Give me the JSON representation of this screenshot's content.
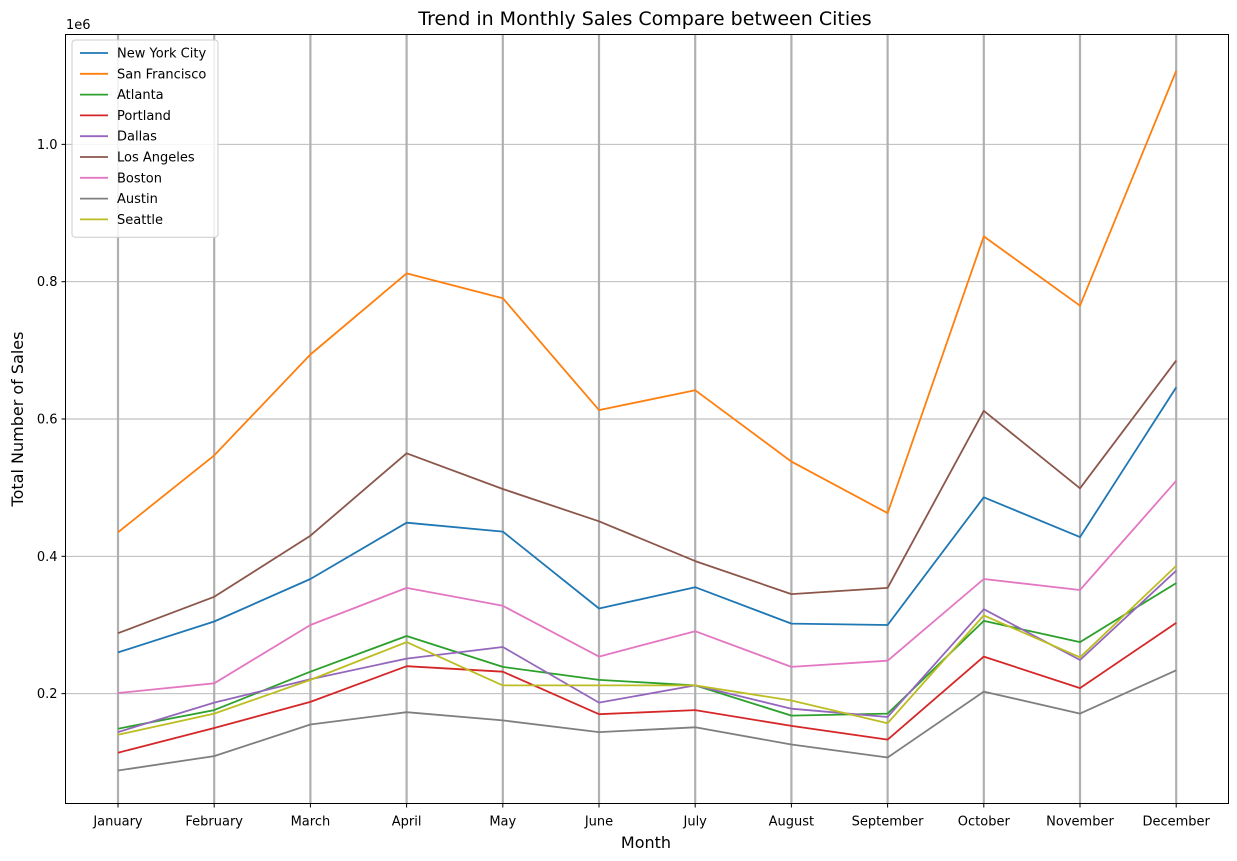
{
  "chart_data": {
    "type": "line",
    "title": "Trend in Monthly Sales Compare between Cities",
    "xlabel": "Month",
    "ylabel": "Total Number of Sales",
    "y_offset_label": "1e6",
    "ylim": [
      40000,
      1160000
    ],
    "yticks": [
      {
        "value": 200000,
        "label": "0.2"
      },
      {
        "value": 400000,
        "label": "0.4"
      },
      {
        "value": 600000,
        "label": "0.6"
      },
      {
        "value": 800000,
        "label": "0.8"
      },
      {
        "value": 1000000,
        "label": "1.0"
      }
    ],
    "grid": true,
    "legend_position": "top-left",
    "categories": [
      "January",
      "February",
      "March",
      "April",
      "May",
      "June",
      "July",
      "August",
      "September",
      "October",
      "November",
      "December"
    ],
    "series": [
      {
        "name": "New York City",
        "color": "#1f77b4",
        "values": [
          260000,
          305000,
          367000,
          449000,
          436000,
          324000,
          355000,
          302000,
          300000,
          486000,
          428000,
          646000
        ]
      },
      {
        "name": "San Francisco",
        "color": "#ff7f0e",
        "values": [
          435000,
          547000,
          694000,
          812000,
          776000,
          613000,
          642000,
          538000,
          463000,
          866000,
          765000,
          1107000
        ]
      },
      {
        "name": "Atlanta",
        "color": "#2ca02c",
        "values": [
          149000,
          176000,
          232000,
          284000,
          239000,
          220000,
          212000,
          168000,
          171000,
          306000,
          275000,
          361000
        ]
      },
      {
        "name": "Portland",
        "color": "#d62728",
        "values": [
          114000,
          150000,
          188000,
          240000,
          232000,
          170000,
          176000,
          153000,
          133000,
          254000,
          208000,
          303000
        ]
      },
      {
        "name": "Dallas",
        "color": "#9467bd",
        "values": [
          144000,
          187000,
          221000,
          251000,
          268000,
          187000,
          212000,
          178000,
          166000,
          323000,
          249000,
          379000
        ]
      },
      {
        "name": "Los Angeles",
        "color": "#8c564b",
        "values": [
          288000,
          341000,
          430000,
          550000,
          498000,
          451000,
          393000,
          345000,
          354000,
          612000,
          499000,
          685000
        ]
      },
      {
        "name": "Boston",
        "color": "#e377c2",
        "values": [
          201000,
          215000,
          300000,
          354000,
          328000,
          254000,
          291000,
          239000,
          248000,
          367000,
          351000,
          510000
        ]
      },
      {
        "name": "Austin",
        "color": "#7f7f7f",
        "values": [
          88000,
          109000,
          155000,
          173000,
          161000,
          144000,
          151000,
          126000,
          107000,
          203000,
          171000,
          234000
        ]
      },
      {
        "name": "Seattle",
        "color": "#bcbd22",
        "values": [
          140000,
          171000,
          220000,
          275000,
          212000,
          212000,
          212000,
          190000,
          157000,
          314000,
          253000,
          386000
        ]
      }
    ]
  }
}
